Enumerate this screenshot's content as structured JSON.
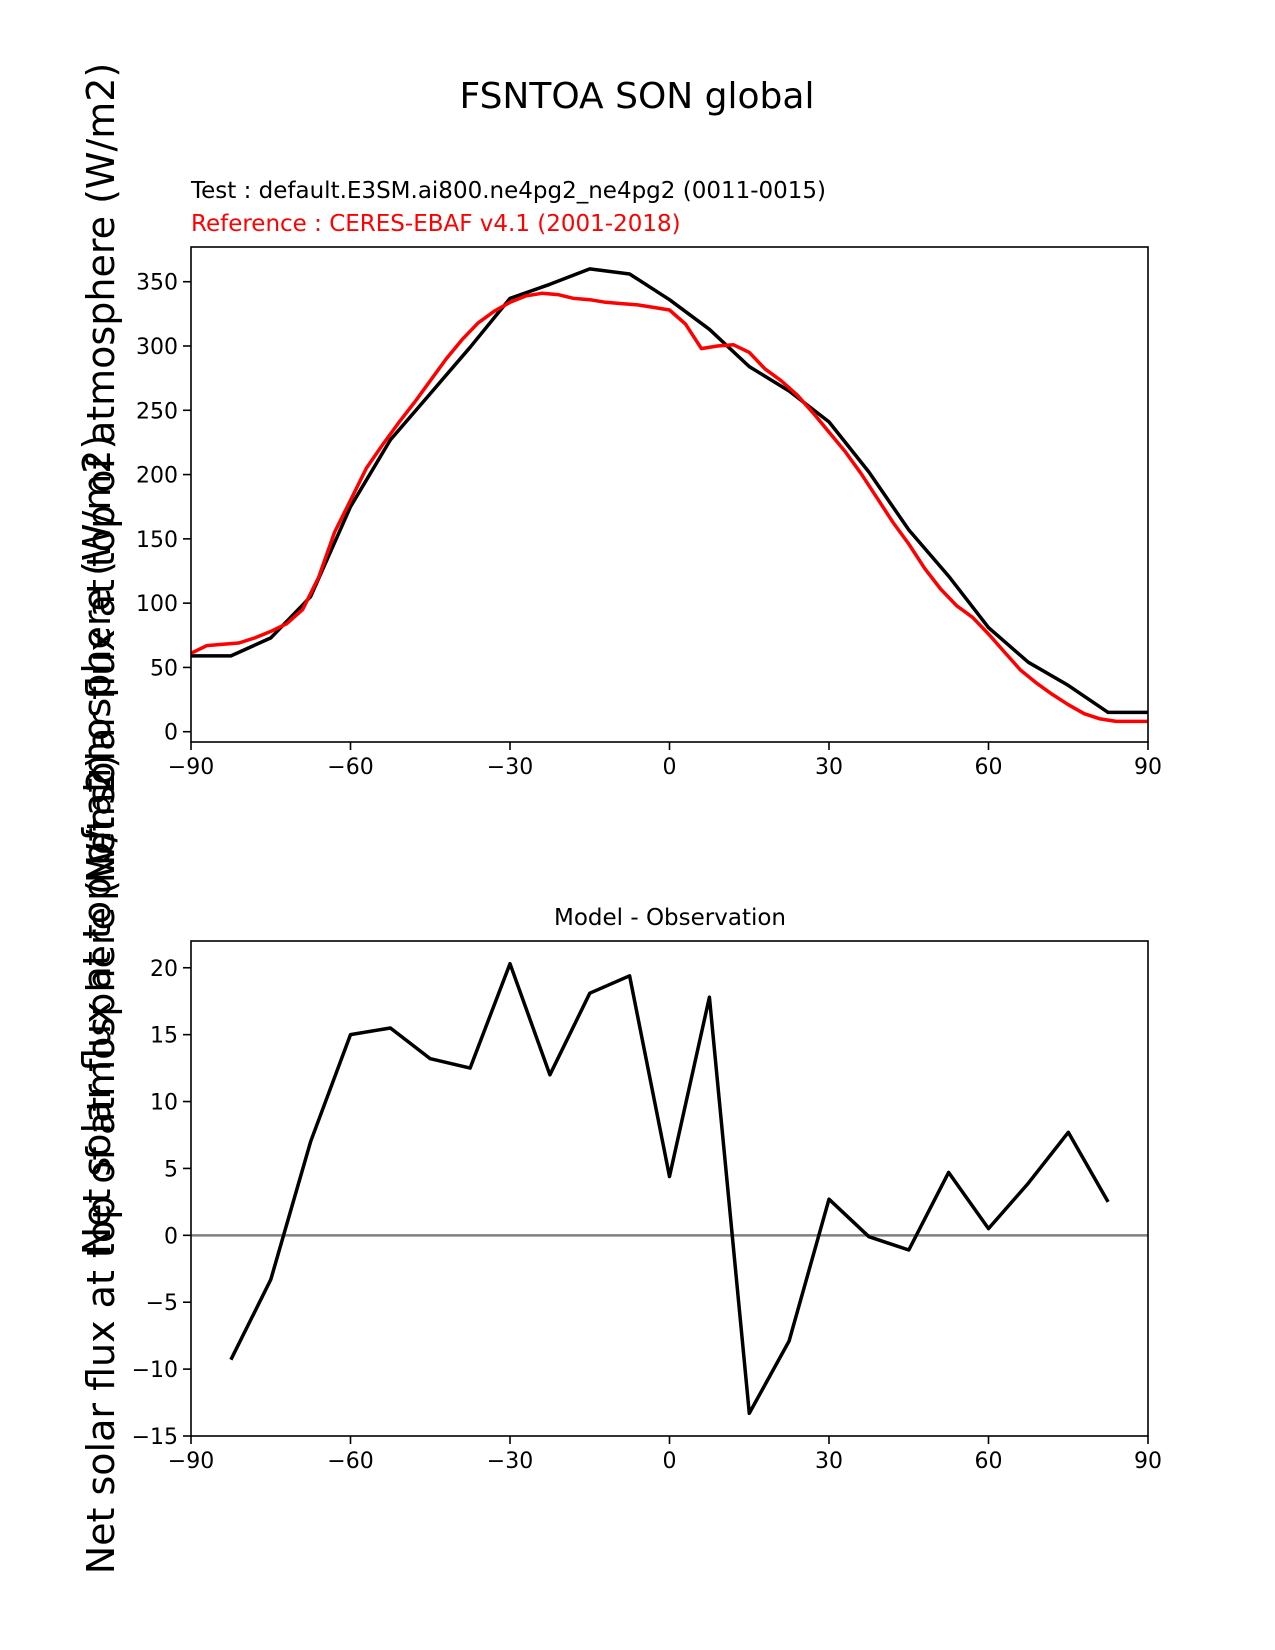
{
  "figure": {
    "suptitle": "FSNTOA SON global",
    "ylabel": "Net solar flux at top of atmosphere (W/m2)"
  },
  "chart_data": [
    {
      "type": "line",
      "test_label": "Test : default.E3SM.ai800.ne4pg2_ne4pg2 (0011-0015)",
      "reference_label": "Reference : CERES-EBAF v4.1 (2001-2018)",
      "ylabel": "Net solar flux at top of atmosphere (W/m2)",
      "xlim": [
        -90,
        90
      ],
      "ylim": [
        -8,
        377
      ],
      "xticks": [
        -90,
        -60,
        -30,
        0,
        30,
        60,
        90
      ],
      "xtick_labels": [
        "−90",
        "−60",
        "−30",
        "0",
        "30",
        "60",
        "90"
      ],
      "yticks": [
        0,
        50,
        100,
        150,
        200,
        250,
        300,
        350
      ],
      "ytick_labels": [
        "0",
        "50",
        "100",
        "150",
        "200",
        "250",
        "300",
        "350"
      ],
      "colors": {
        "test": "#000000",
        "reference": "#ff0000"
      },
      "series": [
        {
          "role": "test",
          "x": [
            -90,
            -82.5,
            -75,
            -67.5,
            -60,
            -52.5,
            -45,
            -37.5,
            -30,
            -22.5,
            -15,
            -7.5,
            0,
            7.5,
            15,
            22.5,
            30,
            37.5,
            45,
            52.5,
            60,
            67.5,
            75,
            82.5,
            90
          ],
          "y": [
            59,
            59,
            73,
            105,
            175,
            227,
            263,
            299,
            337,
            348,
            360,
            356,
            336,
            313,
            284,
            265,
            241,
            202,
            157,
            121,
            81,
            54,
            36,
            15,
            15
          ]
        },
        {
          "role": "reference",
          "x": [
            -90,
            -87,
            -84,
            -81,
            -78,
            -75,
            -72,
            -69,
            -66,
            -63,
            -60,
            -57,
            -54,
            -51,
            -48,
            -45,
            -42,
            -39,
            -36,
            -33,
            -30,
            -27,
            -24,
            -21,
            -18,
            -15,
            -12,
            -9,
            -6,
            -3,
            0,
            3,
            6,
            9,
            12,
            15,
            18,
            21,
            24,
            27,
            30,
            33,
            36,
            39,
            42,
            45,
            48,
            51,
            54,
            57,
            60,
            63,
            66,
            69,
            72,
            75,
            78,
            81,
            84,
            87,
            90
          ],
          "y": [
            61,
            67,
            68,
            69,
            73,
            78,
            84,
            95,
            120,
            155,
            180,
            205,
            223,
            240,
            256,
            273,
            290,
            305,
            318,
            327,
            334,
            339,
            341,
            340,
            337,
            336,
            334,
            333,
            332,
            330,
            328,
            317,
            298,
            300,
            301,
            295,
            282,
            273,
            262,
            248,
            233,
            218,
            201,
            182,
            163,
            146,
            127,
            111,
            98,
            89,
            76,
            62,
            48,
            38,
            29,
            21,
            14,
            10,
            8,
            8,
            8
          ]
        }
      ]
    },
    {
      "type": "line",
      "title": "Model - Observation",
      "ylabel": "Net solar flux at top of atmosphere (W/m2)",
      "xlim": [
        -90,
        90
      ],
      "ylim": [
        -15,
        22
      ],
      "xticks": [
        -90,
        -60,
        -30,
        0,
        30,
        60,
        90
      ],
      "xtick_labels": [
        "−90",
        "−60",
        "−30",
        "0",
        "30",
        "60",
        "90"
      ],
      "yticks": [
        -15,
        -10,
        -5,
        0,
        5,
        10,
        15,
        20
      ],
      "ytick_labels": [
        "−15",
        "−10",
        "−5",
        "0",
        "5",
        "10",
        "15",
        "20"
      ],
      "zero_line": true,
      "colors": {
        "diff": "#000000",
        "zero": "#808080"
      },
      "series": [
        {
          "role": "diff",
          "x": [
            -82.5,
            -75,
            -67.5,
            -60,
            -52.5,
            -45,
            -37.5,
            -30,
            -22.5,
            -15,
            -7.5,
            0,
            7.5,
            15,
            22.5,
            30,
            37.5,
            45,
            52.5,
            60,
            67.5,
            75,
            82.5
          ],
          "y": [
            -9.3,
            -3.3,
            7.0,
            15.0,
            15.5,
            13.2,
            12.5,
            20.3,
            12.0,
            18.1,
            19.4,
            4.4,
            17.8,
            -13.3,
            -7.9,
            2.7,
            -0.1,
            -1.1,
            4.7,
            0.5,
            3.9,
            7.7,
            2.5
          ]
        }
      ]
    }
  ]
}
